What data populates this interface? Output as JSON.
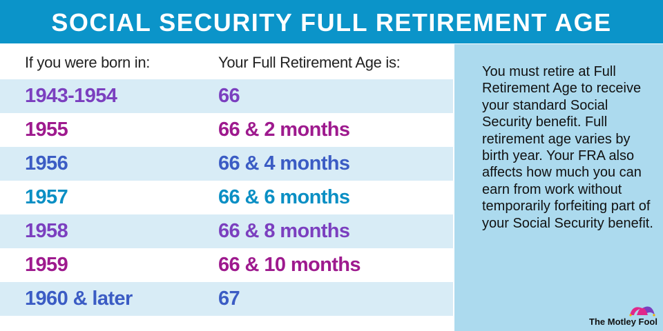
{
  "title": "SOCIAL SECURITY FULL RETIREMENT AGE",
  "table": {
    "headers": [
      "If you were born in:",
      "Your Full Retirement Age is:"
    ],
    "rows": [
      {
        "born": "1943-1954",
        "fra": "66",
        "color": "#7b3fbf"
      },
      {
        "born": "1955",
        "fra": "66 & 2 months",
        "color": "#9e1a8e"
      },
      {
        "born": "1956",
        "fra": "66 & 4 months",
        "color": "#3b5cc4"
      },
      {
        "born": "1957",
        "fra": "66 & 6 months",
        "color": "#0a8fc4"
      },
      {
        "born": "1958",
        "fra": "66 & 8 months",
        "color": "#7b3fbf"
      },
      {
        "born": "1959",
        "fra": "66 & 10 months",
        "color": "#9e1a8e"
      },
      {
        "born": "1960 & later",
        "fra": "67",
        "color": "#3b5cc4"
      }
    ]
  },
  "side_note": "You must retire at Full Retirement Age to receive your standard Social Security benefit. Full retirement age varies by birth year. Your FRA also affects how much you can earn from work without temporarily forfeiting part of your Social Security benefit.",
  "logo": "The Motley Fool"
}
